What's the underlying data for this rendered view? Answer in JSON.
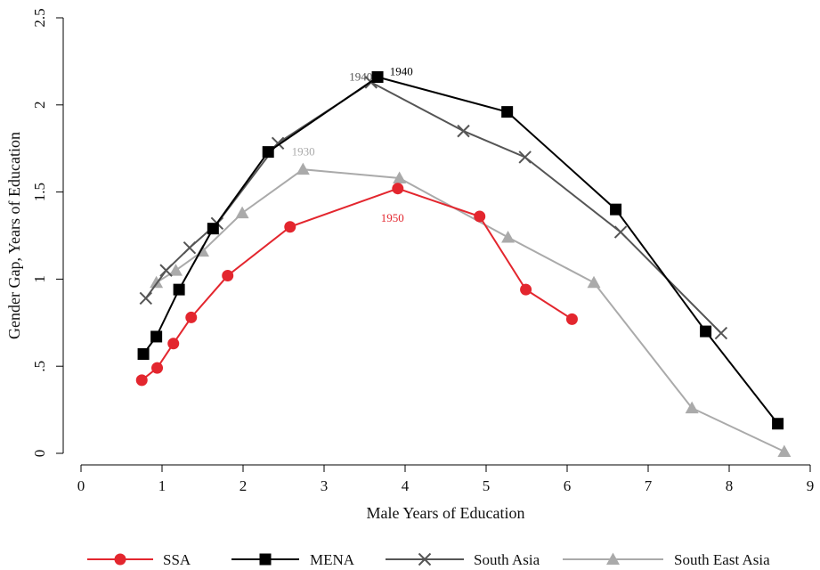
{
  "chart_data": {
    "type": "line",
    "xlabel": "Male Years of Education",
    "ylabel": "Gender Gap, Years of Education",
    "xlim": [
      0,
      9
    ],
    "ylim": [
      0,
      2.5
    ],
    "x_ticks": [
      0,
      1,
      2,
      3,
      4,
      5,
      6,
      7,
      8,
      9
    ],
    "x_tick_labels": [
      "0",
      "1",
      "2",
      "3",
      "4",
      "5",
      "6",
      "7",
      "8",
      "9"
    ],
    "y_ticks": [
      0,
      0.5,
      1,
      1.5,
      2,
      2.5
    ],
    "y_tick_labels": [
      "0",
      ".5",
      "1",
      "1.5",
      "2",
      "2.5"
    ],
    "grid": false,
    "legend": "bottom",
    "series": [
      {
        "name": "SSA",
        "color": "#e3262e",
        "marker": "circle",
        "points": [
          [
            0.75,
            0.42
          ],
          [
            0.94,
            0.49
          ],
          [
            1.14,
            0.63
          ],
          [
            1.36,
            0.78
          ],
          [
            1.81,
            1.02
          ],
          [
            2.58,
            1.3
          ],
          [
            3.91,
            1.52
          ],
          [
            4.92,
            1.36
          ],
          [
            5.49,
            0.94
          ],
          [
            6.06,
            0.77
          ]
        ]
      },
      {
        "name": "MENA",
        "color": "#000000",
        "marker": "square",
        "points": [
          [
            0.77,
            0.57
          ],
          [
            0.93,
            0.67
          ],
          [
            1.21,
            0.94
          ],
          [
            1.63,
            1.29
          ],
          [
            2.31,
            1.73
          ],
          [
            3.66,
            2.16
          ],
          [
            5.26,
            1.96
          ],
          [
            6.6,
            1.4
          ],
          [
            7.71,
            0.7
          ],
          [
            8.6,
            0.17
          ]
        ]
      },
      {
        "name": "South Asia",
        "color": "#555555",
        "marker": "x",
        "points": [
          [
            0.8,
            0.89
          ],
          [
            1.05,
            1.05
          ],
          [
            1.34,
            1.18
          ],
          [
            1.68,
            1.32
          ],
          [
            2.43,
            1.78
          ],
          [
            3.58,
            2.13
          ],
          [
            4.72,
            1.85
          ],
          [
            5.48,
            1.7
          ],
          [
            6.66,
            1.27
          ],
          [
            7.9,
            0.69
          ]
        ]
      },
      {
        "name": "South East Asia",
        "color": "#aaaaaa",
        "marker": "triangle",
        "points": [
          [
            0.93,
            0.98
          ],
          [
            1.17,
            1.05
          ],
          [
            1.5,
            1.16
          ],
          [
            1.99,
            1.38
          ],
          [
            2.74,
            1.63
          ],
          [
            3.93,
            1.58
          ],
          [
            5.27,
            1.24
          ],
          [
            6.33,
            0.98
          ],
          [
            7.54,
            0.26
          ],
          [
            8.68,
            0.01
          ]
        ]
      }
    ],
    "annotations": [
      {
        "text": "1940",
        "x": 3.31,
        "y": 2.14,
        "color": "#555555"
      },
      {
        "text": "1940",
        "x": 3.81,
        "y": 2.17,
        "color": "#000000"
      },
      {
        "text": "1930",
        "x": 2.6,
        "y": 1.71,
        "color": "#aaaaaa"
      },
      {
        "text": "1950",
        "x": 3.7,
        "y": 1.33,
        "color": "#e3262e"
      }
    ]
  }
}
